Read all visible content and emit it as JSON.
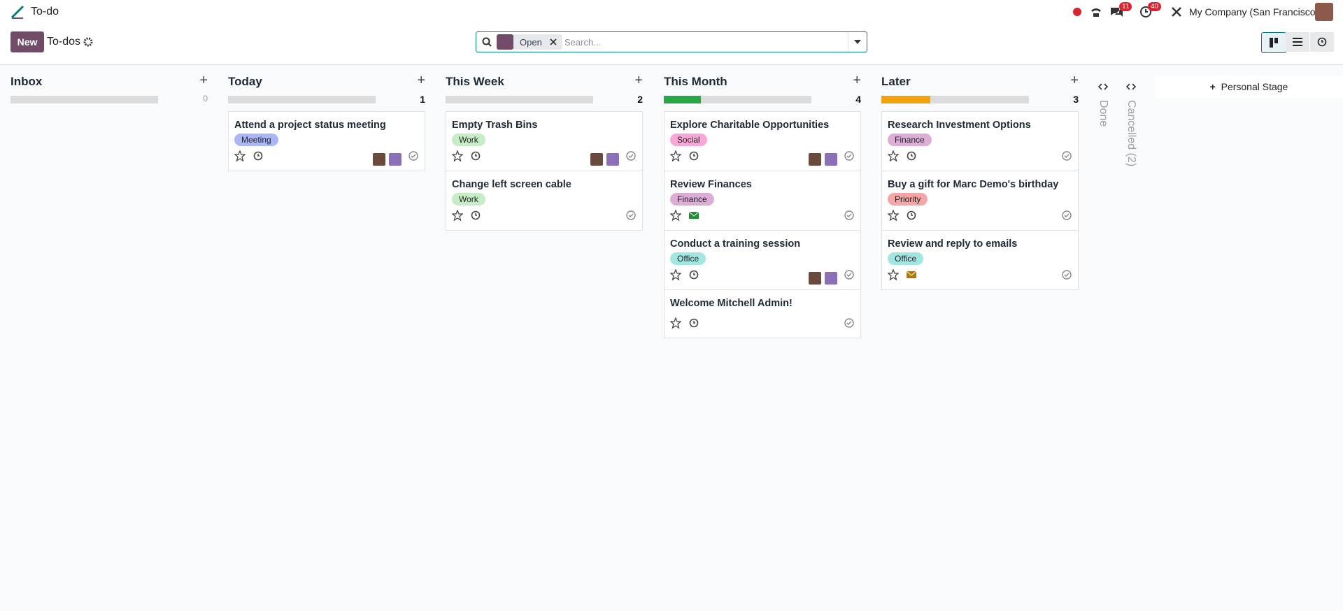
{
  "header": {
    "app": "To-do",
    "company": "My Company (San Francisco)",
    "badges": [
      11,
      40
    ]
  },
  "control": {
    "new": "New",
    "breadcrumb": "To-dos",
    "facet": "Open",
    "search_placeholder": "Search..."
  },
  "columns": [
    {
      "name": "Inbox",
      "count": 0,
      "progress": [],
      "cards": []
    },
    {
      "name": "Today",
      "count": 1,
      "progress": [],
      "cards": [
        {
          "title": "Attend a project status meeting",
          "tag": "Meeting",
          "tag_color": "#a9b6f7",
          "activity": "clock",
          "avatars": true
        }
      ]
    },
    {
      "name": "This Week",
      "count": 2,
      "progress": [],
      "cards": [
        {
          "title": "Empty Trash Bins",
          "tag": "Work",
          "tag_color": "#c6edc6",
          "activity": "clock",
          "avatars": true
        },
        {
          "title": "Change left screen cable",
          "tag": "Work",
          "tag_color": "#c6edc6",
          "activity": "clock",
          "avatars": false
        }
      ]
    },
    {
      "name": "This Month",
      "count": 4,
      "progress": [
        {
          "color": "#28a745",
          "value": 1
        }
      ],
      "cards": [
        {
          "title": "Explore Charitable Opportunities",
          "tag": "Social",
          "tag_color": "#f7a8d6",
          "activity": "clock",
          "avatars": true
        },
        {
          "title": "Review Finances",
          "tag": "Finance",
          "tag_color": "#dcadd6",
          "activity": "mail-green",
          "avatars": false
        },
        {
          "title": "Conduct a training session",
          "tag": "Office",
          "tag_color": "#a2e6e1",
          "activity": "clock",
          "avatars": true
        },
        {
          "title": "Welcome Mitchell Admin!",
          "tag": null,
          "tag_color": null,
          "activity": "clock",
          "avatars": false
        }
      ]
    },
    {
      "name": "Later",
      "count": 3,
      "progress": [
        {
          "color": "#f0a30a",
          "value": 1
        }
      ],
      "cards": [
        {
          "title": "Research Investment Options",
          "tag": "Finance",
          "tag_color": "#dcadd6",
          "activity": "clock",
          "avatars": false
        },
        {
          "title": "Buy a gift for Marc Demo's birthday",
          "tag": "Priority",
          "tag_color": "#f5a5a5",
          "activity": "clock",
          "avatars": false
        },
        {
          "title": "Review and reply to emails",
          "tag": "Office",
          "tag_color": "#a2e6e1",
          "activity": "mail-orange",
          "avatars": false
        }
      ]
    }
  ],
  "folded": [
    "Done",
    "Cancelled (2)"
  ],
  "personal_stage": "Personal Stage"
}
